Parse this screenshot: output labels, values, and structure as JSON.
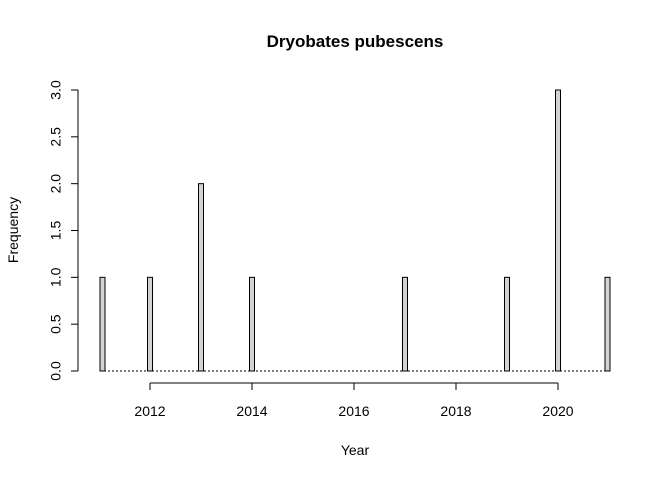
{
  "chart_data": {
    "type": "bar",
    "title": "Dryobates pubescens",
    "xlabel": "Year",
    "ylabel": "Frequency",
    "x": [
      2011,
      2012,
      2013,
      2014,
      2017,
      2019,
      2020,
      2021
    ],
    "values": [
      1,
      1,
      2,
      1,
      1,
      1,
      3,
      1
    ],
    "xlim": [
      2011,
      2021
    ],
    "ylim": [
      0,
      3
    ],
    "x_ticks": [
      "2012",
      "2014",
      "2016",
      "2018",
      "2020"
    ],
    "y_ticks": [
      "0.0",
      "0.5",
      "1.0",
      "1.5",
      "2.0",
      "2.5",
      "3.0"
    ],
    "bar_fill": "#d3d3d3",
    "grid": false,
    "legend": "none"
  }
}
